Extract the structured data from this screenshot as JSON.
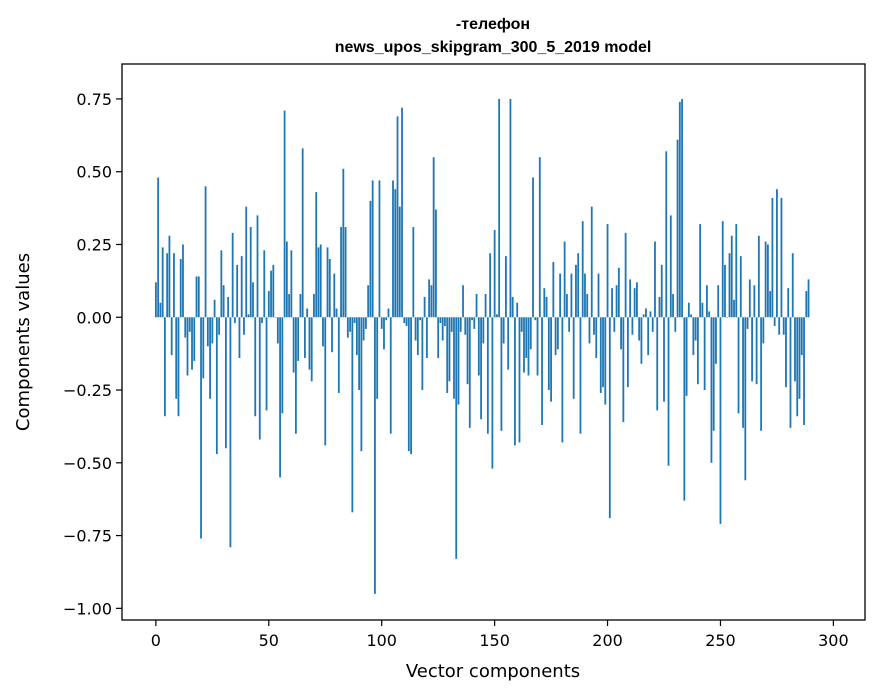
{
  "chart_data": {
    "type": "bar",
    "title_line1": "-телефон",
    "title_line2": "news_upos_skipgram_300_5_2019 model",
    "xlabel": "Vector components",
    "ylabel": "Components values",
    "xlim": [
      -15,
      314
    ],
    "ylim": [
      -1.04,
      0.87
    ],
    "xticks": [
      0,
      50,
      100,
      150,
      200,
      250,
      300
    ],
    "yticks": [
      -1.0,
      -0.75,
      -0.5,
      -0.25,
      0.0,
      0.25,
      0.5,
      0.75
    ],
    "ytick_labels": [
      "−1.00",
      "−0.75",
      "−0.50",
      "−0.25",
      "0.00",
      "0.25",
      "0.50",
      "0.75"
    ],
    "bar_color": "#1f77b4",
    "values": [
      0.12,
      0.48,
      0.05,
      0.24,
      -0.34,
      0.22,
      0.28,
      -0.13,
      0.22,
      -0.28,
      -0.34,
      0.2,
      0.25,
      -0.07,
      -0.2,
      -0.05,
      -0.18,
      -0.15,
      0.14,
      0.14,
      -0.76,
      -0.21,
      0.45,
      -0.1,
      -0.28,
      -0.09,
      0.06,
      -0.47,
      -0.06,
      0.23,
      0.11,
      -0.45,
      0.07,
      -0.79,
      0.29,
      -0.02,
      0.18,
      -0.14,
      0.21,
      -0.06,
      0.38,
      0.01,
      0.31,
      0.12,
      -0.34,
      0.35,
      -0.42,
      -0.02,
      0.23,
      -0.32,
      0.09,
      0.16,
      0.18,
      0.0,
      -0.09,
      -0.55,
      -0.33,
      0.71,
      0.26,
      0.08,
      0.23,
      -0.19,
      -0.4,
      -0.15,
      0.08,
      0.58,
      -0.14,
      0.03,
      -0.18,
      -0.22,
      0.08,
      0.43,
      0.24,
      0.25,
      -0.1,
      -0.44,
      0.24,
      0.2,
      -0.12,
      0.15,
      0.03,
      -0.26,
      0.31,
      0.51,
      0.31,
      -0.07,
      -0.05,
      -0.67,
      -0.02,
      -0.13,
      -0.25,
      -0.46,
      -0.08,
      -0.04,
      0.11,
      0.4,
      0.47,
      -0.95,
      -0.28,
      0.47,
      -0.04,
      -0.11,
      -0.01,
      0.03,
      -0.4,
      0.47,
      0.44,
      0.69,
      0.38,
      0.72,
      -0.02,
      -0.03,
      -0.46,
      -0.47,
      0.31,
      -0.08,
      -0.13,
      -0.01,
      -0.25,
      0.07,
      -0.14,
      0.13,
      0.11,
      0.55,
      0.37,
      -0.14,
      -0.02,
      -0.08,
      -0.03,
      -0.26,
      -0.22,
      -0.05,
      -0.28,
      -0.83,
      -0.3,
      -0.05,
      0.11,
      -0.06,
      -0.23,
      -0.38,
      -0.01,
      -0.04,
      0.08,
      -0.2,
      -0.35,
      -0.09,
      0.08,
      -0.4,
      0.22,
      -0.52,
      0.3,
      0.01,
      0.75,
      -0.39,
      -0.09,
      0.21,
      -0.18,
      0.75,
      0.07,
      -0.44,
      0.05,
      -0.43,
      -0.05,
      -0.19,
      -0.14,
      -0.2,
      -0.11,
      0.48,
      -0.01,
      -0.2,
      0.55,
      -0.37,
      0.1,
      0.07,
      -0.25,
      -0.29,
      0.19,
      -0.13,
      -0.11,
      0.15,
      -0.43,
      0.26,
      0.08,
      -0.05,
      0.15,
      -0.28,
      0.18,
      0.22,
      -0.4,
      0.33,
      0.15,
      0.08,
      -0.09,
      0.38,
      -0.06,
      -0.14,
      0.15,
      -0.26,
      -0.24,
      -0.3,
      0.32,
      -0.69,
      0.1,
      -0.05,
      0.11,
      0.17,
      -0.11,
      -0.36,
      0.29,
      -0.24,
      0.13,
      -0.06,
      0.1,
      0.12,
      -0.08,
      -0.16,
      0.01,
      0.03,
      -0.13,
      0.02,
      -0.05,
      0.26,
      -0.32,
      0.07,
      0.18,
      -0.29,
      0.57,
      -0.51,
      0.35,
      0.08,
      -0.05,
      0.61,
      0.74,
      0.75,
      -0.63,
      -0.27,
      0.05,
      0.01,
      -0.13,
      -0.08,
      -0.23,
      0.32,
      0.05,
      -0.25,
      0.11,
      0.02,
      -0.5,
      -0.39,
      -0.16,
      0.11,
      -0.71,
      0.33,
      0.18,
      0.0,
      0.22,
      0.28,
      0.06,
      0.32,
      -0.33,
      0.21,
      -0.38,
      -0.56,
      -0.04,
      0.13,
      -0.22,
      0.11,
      -0.23,
      0.28,
      -0.39,
      -0.09,
      0.26,
      0.25,
      0.09,
      0.41,
      -0.03,
      0.44,
      -0.06,
      0.41,
      -0.06,
      -0.24,
      0.1,
      -0.38,
      0.22,
      -0.22,
      -0.34,
      -0.28,
      -0.13,
      -0.37,
      0.09,
      0.13
    ]
  }
}
